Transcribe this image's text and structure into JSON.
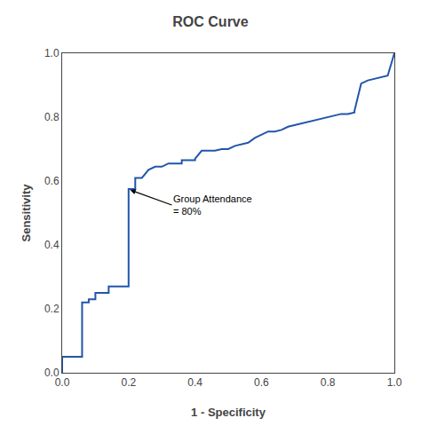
{
  "chart_data": {
    "type": "line",
    "title": "ROC Curve",
    "xlabel": "1 - Specificity",
    "ylabel": "Sensitivity",
    "color": "#2255aa",
    "grid": false,
    "xlim": [
      0.0,
      1.0
    ],
    "ylim": [
      0.0,
      1.0
    ],
    "xticks": [
      {
        "value": 0.0,
        "label": "0.0"
      },
      0.2,
      0.4,
      0.6,
      0.8,
      {
        "value": 1.0,
        "label": "1.0"
      }
    ],
    "yticks": [
      {
        "value": 0.0,
        "label": "0.0"
      },
      0.2,
      0.4,
      0.6,
      0.8,
      {
        "value": 1.0,
        "label": "1.0"
      }
    ],
    "annotations": [
      {
        "text": "Group Attendance\n= 80%",
        "x": 0.205,
        "y": 0.572,
        "text_x": 0.33,
        "text_y": 0.525
      }
    ],
    "x": [
      0.0,
      0.0,
      0.0,
      0.02,
      0.04,
      0.06,
      0.06,
      0.06,
      0.08,
      0.08,
      0.1,
      0.1,
      0.12,
      0.14,
      0.14,
      0.16,
      0.18,
      0.2,
      0.2,
      0.2,
      0.22,
      0.22,
      0.24,
      0.26,
      0.28,
      0.3,
      0.32,
      0.34,
      0.36,
      0.36,
      0.38,
      0.4,
      0.4,
      0.42,
      0.44,
      0.46,
      0.48,
      0.5,
      0.52,
      0.54,
      0.56,
      0.58,
      0.6,
      0.62,
      0.64,
      0.66,
      0.68,
      0.7,
      0.72,
      0.74,
      0.76,
      0.78,
      0.8,
      0.82,
      0.84,
      0.86,
      0.88,
      0.88,
      0.9,
      0.92,
      0.94,
      0.96,
      0.98,
      1.0
    ],
    "values": [
      0.0,
      0.0,
      0.05,
      0.05,
      0.05,
      0.05,
      0.1,
      0.22,
      0.22,
      0.23,
      0.23,
      0.25,
      0.25,
      0.25,
      0.27,
      0.27,
      0.27,
      0.27,
      0.33,
      0.575,
      0.575,
      0.61,
      0.61,
      0.635,
      0.645,
      0.645,
      0.655,
      0.655,
      0.655,
      0.665,
      0.665,
      0.665,
      0.67,
      0.695,
      0.695,
      0.695,
      0.7,
      0.7,
      0.71,
      0.715,
      0.72,
      0.735,
      0.745,
      0.755,
      0.755,
      0.76,
      0.77,
      0.775,
      0.78,
      0.785,
      0.79,
      0.795,
      0.8,
      0.805,
      0.81,
      0.81,
      0.815,
      0.82,
      0.905,
      0.915,
      0.92,
      0.925,
      0.93,
      1.0
    ]
  }
}
